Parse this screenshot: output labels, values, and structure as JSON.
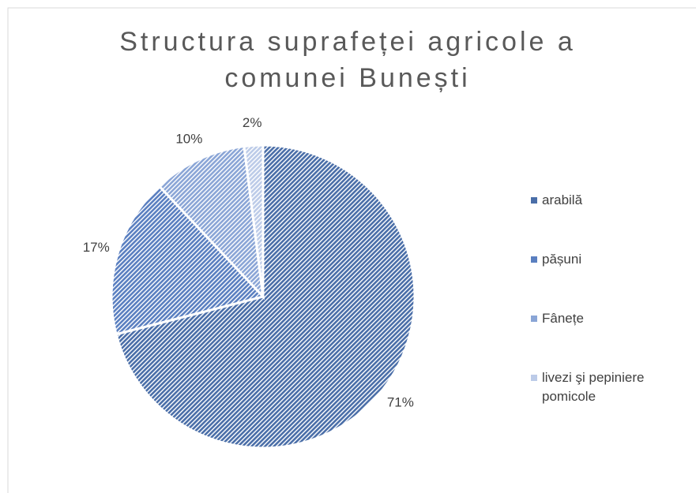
{
  "chart_data": {
    "type": "pie",
    "title": "Structura suprafeței agricole a comunei Bunești",
    "categories": [
      "arabilă",
      "pășuni",
      "Fânețe",
      "livezi şi pepiniere pomicole"
    ],
    "values": [
      71,
      17,
      10,
      2
    ],
    "value_labels": [
      "71%",
      "17%",
      "10%",
      "2%"
    ],
    "colors": [
      "#4a6ea8",
      "#5a7fc0",
      "#8aa5d6",
      "#bccbe8"
    ],
    "legend": "right"
  }
}
